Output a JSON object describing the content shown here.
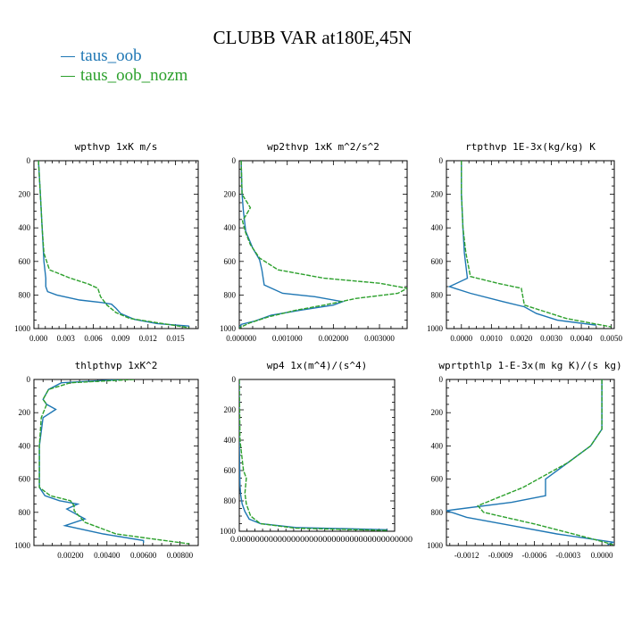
{
  "title": "CLUBB VAR at180E,45N",
  "legend": [
    {
      "label": "taus_oob",
      "color": "#1f77b4"
    },
    {
      "label": "taus_oob_nozm",
      "color": "#2ca02c"
    }
  ],
  "chart_data": [
    {
      "type": "line",
      "title": "wpthvp   1xK m/s",
      "xlim": [
        -0.0005,
        0.0175
      ],
      "ylim": [
        1000,
        0
      ],
      "xticks": [
        0.0,
        0.003,
        0.006,
        0.009,
        0.012,
        0.015
      ],
      "xtick_labels": [
        "0.000",
        "0.003",
        "0.006",
        "0.009",
        "0.012",
        "0.015"
      ],
      "yticks": [
        0,
        200,
        400,
        600,
        800,
        1000
      ],
      "ytick_labels": [
        "0",
        "200",
        "400",
        "600",
        "800",
        "1000"
      ],
      "series": [
        {
          "name": "taus_oob",
          "x": [
            0.0,
            0.0002,
            0.0004,
            0.0005,
            0.0006,
            0.0008,
            0.0008,
            0.001,
            0.002,
            0.0045,
            0.007,
            0.008,
            0.0085,
            0.009,
            0.0105,
            0.013,
            0.0165
          ],
          "y": [
            0,
            200,
            400,
            500,
            600,
            700,
            750,
            780,
            800,
            830,
            845,
            855,
            880,
            910,
            945,
            970,
            985
          ]
        },
        {
          "name": "taus_oob_nozm",
          "x": [
            0.0,
            0.0002,
            0.0004,
            0.0006,
            0.0012,
            0.0035,
            0.0055,
            0.0065,
            0.0068,
            0.0075,
            0.0085,
            0.01,
            0.013,
            0.0165
          ],
          "y": [
            0,
            200,
            400,
            550,
            650,
            700,
            735,
            760,
            810,
            860,
            905,
            940,
            965,
            995
          ]
        }
      ]
    },
    {
      "type": "line",
      "title": "wp2thvp   1xK m^2/s^2",
      "xlim": [
        -4e-05,
        0.0036
      ],
      "ylim": [
        1000,
        0
      ],
      "xticks": [
        0.0,
        0.001,
        0.002,
        0.003
      ],
      "xtick_labels": [
        "0.000000",
        "0.001000",
        "0.002000",
        "0.003000"
      ],
      "yticks": [
        0,
        200,
        400,
        600,
        800,
        1000
      ],
      "ytick_labels": [
        "0",
        "200",
        "400",
        "600",
        "800",
        "1000"
      ],
      "series": [
        {
          "name": "taus_oob",
          "x": [
            0.0,
            2e-05,
            5e-05,
            0.0001,
            0.00025,
            0.0004,
            0.00045,
            0.0005,
            0.0009,
            0.0016,
            0.0022,
            0.002,
            0.0013,
            0.00065,
            0.0003,
            0.0,
            -4e-05
          ],
          "y": [
            0,
            200,
            300,
            420,
            520,
            590,
            650,
            740,
            790,
            810,
            840,
            860,
            890,
            920,
            955,
            975,
            995
          ]
        },
        {
          "name": "taus_oob_nozm",
          "x": [
            0.0,
            2e-05,
            0.0002,
            3e-05,
            0.0001,
            0.0002,
            0.0004,
            0.0008,
            0.0018,
            0.003,
            0.0036,
            0.0034,
            0.0025,
            0.0018,
            0.0012,
            0.0006,
            0.0002,
            -4e-05
          ],
          "y": [
            0,
            200,
            280,
            360,
            430,
            500,
            580,
            650,
            700,
            730,
            760,
            790,
            820,
            860,
            890,
            930,
            965,
            995
          ]
        }
      ]
    },
    {
      "type": "line",
      "title": "rtpthvp   1E-3x(kg/kg) K",
      "xlim": [
        -0.0005,
        0.0051
      ],
      "ylim": [
        1000,
        0
      ],
      "xticks": [
        0.0,
        0.001,
        0.002,
        0.003,
        0.004,
        0.005
      ],
      "xtick_labels": [
        "0.0000",
        "0.0010",
        "0.0020",
        "0.0030",
        "0.0040",
        "0.0050"
      ],
      "yticks": [
        0,
        200,
        400,
        600,
        800,
        1000
      ],
      "ytick_labels": [
        "0",
        "200",
        "400",
        "600",
        "800",
        "1000"
      ],
      "series": [
        {
          "name": "taus_oob",
          "x": [
            0.0,
            0.0,
            5e-05,
            0.0001,
            0.0002,
            -0.0004,
            0.0003,
            0.0014,
            0.0021,
            0.0025,
            0.0032,
            0.0045
          ],
          "y": [
            0,
            200,
            400,
            550,
            700,
            750,
            790,
            840,
            870,
            910,
            950,
            980
          ]
        },
        {
          "name": "taus_oob_nozm",
          "x": [
            0.0,
            0.0,
            5e-05,
            0.00015,
            0.0003,
            0.0012,
            0.002,
            0.0021,
            0.0035,
            0.005
          ],
          "y": [
            0,
            200,
            400,
            550,
            690,
            730,
            760,
            860,
            940,
            990
          ]
        }
      ]
    },
    {
      "type": "line",
      "title": "thlpthvp   1xK^2",
      "xlim": [
        0.0,
        0.009
      ],
      "ylim": [
        1000,
        0
      ],
      "xticks": [
        0.002,
        0.004,
        0.006,
        0.008
      ],
      "xtick_labels": [
        "0.00200",
        "0.00400",
        "0.00600",
        "0.00800"
      ],
      "yticks": [
        0,
        200,
        400,
        600,
        800,
        1000
      ],
      "ytick_labels": [
        "0",
        "200",
        "400",
        "600",
        "800",
        "1000"
      ],
      "series": [
        {
          "name": "taus_oob",
          "x": [
            0.0048,
            0.0015,
            0.0008,
            0.0005,
            0.0007,
            0.0012,
            0.0005,
            0.0003,
            0.0003,
            0.0003,
            0.0006,
            0.0014,
            0.0024,
            0.0018,
            0.0028,
            0.0017,
            0.0038,
            0.006,
            0.006
          ],
          "y": [
            0,
            20,
            60,
            120,
            150,
            180,
            230,
            400,
            600,
            650,
            700,
            730,
            750,
            780,
            840,
            880,
            930,
            970,
            985
          ]
        },
        {
          "name": "taus_oob_nozm",
          "x": [
            0.0055,
            0.002,
            0.0008,
            0.0005,
            0.0007,
            0.0004,
            0.0003,
            0.0003,
            0.0003,
            0.0009,
            0.002,
            0.0022,
            0.0022,
            0.0028,
            0.0045,
            0.0065,
            0.0085
          ],
          "y": [
            0,
            20,
            60,
            120,
            150,
            230,
            400,
            600,
            650,
            700,
            730,
            760,
            790,
            860,
            930,
            960,
            990
          ]
        }
      ]
    },
    {
      "type": "line",
      "title": "wp4   1x(m^4)/(s^4)",
      "xlim": [
        0.0,
        0.22
      ],
      "ylim": [
        1000,
        0
      ],
      "xticks": [],
      "xtick_labels": [],
      "xaxis_label_text": "0.000000000000000000000000000000000000000",
      "yticks": [
        0,
        200,
        400,
        600,
        800,
        1000
      ],
      "ytick_labels": [
        "0",
        "200",
        "400",
        "600",
        "800",
        "1000"
      ],
      "series": [
        {
          "name": "taus_oob",
          "x": [
            0.0,
            0.0,
            0.001,
            0.002,
            0.004,
            0.008,
            0.014,
            0.03,
            0.08,
            0.21
          ],
          "y": [
            0,
            400,
            700,
            760,
            820,
            870,
            920,
            950,
            975,
            990
          ]
        },
        {
          "name": "taus_oob_nozm",
          "x": [
            0.0,
            0.001,
            0.006,
            0.01,
            0.008,
            0.01,
            0.016,
            0.03,
            0.08,
            0.21
          ],
          "y": [
            0,
            400,
            600,
            650,
            750,
            820,
            900,
            950,
            980,
            995
          ]
        }
      ]
    },
    {
      "type": "line",
      "title": "wprtpthlp   1-E-3x(m kg K)/(s kg)",
      "xlim": [
        -0.00138,
        0.00011
      ],
      "ylim": [
        1000,
        0
      ],
      "xticks": [
        -0.0012,
        -0.0009,
        -0.0006,
        -0.0003,
        0.0
      ],
      "xtick_labels": [
        "-0.0012",
        "-0.0009",
        "-0.0006",
        "-0.0003",
        "0.0000"
      ],
      "yticks": [
        0,
        200,
        400,
        600,
        800,
        1000
      ],
      "ytick_labels": [
        "0",
        "200",
        "400",
        "600",
        "800",
        "1000"
      ],
      "series": [
        {
          "name": "taus_oob",
          "x": [
            0.0,
            0.0,
            -0.0001,
            -0.0003,
            -0.0005,
            -0.0005,
            -0.0008,
            -0.00138,
            -0.0012,
            -0.0008,
            -0.0004,
            -0.0001,
            0.0001,
            5e-05
          ],
          "y": [
            0,
            300,
            400,
            500,
            600,
            700,
            740,
            790,
            830,
            880,
            930,
            960,
            980,
            995
          ]
        },
        {
          "name": "taus_oob_nozm",
          "x": [
            0.0,
            0.0,
            -0.0001,
            -0.0003,
            -0.0007,
            -0.0011,
            -0.00105,
            -0.0006,
            -0.0002,
            0.0,
            0.0001
          ],
          "y": [
            0,
            300,
            400,
            500,
            650,
            760,
            800,
            870,
            940,
            975,
            995
          ]
        }
      ]
    }
  ]
}
